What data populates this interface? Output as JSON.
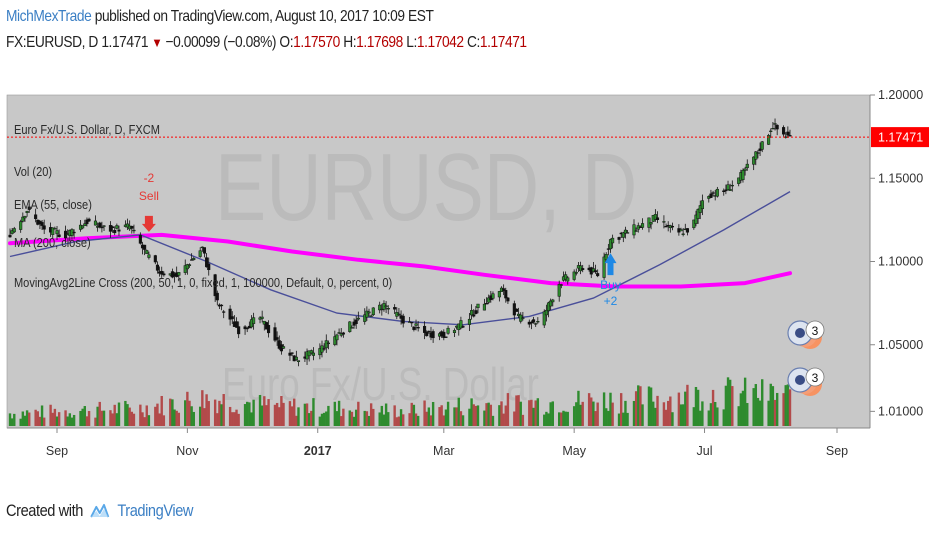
{
  "header": {
    "username": "MichMexTrade",
    "published_text": "published on TradingView.com, August 10, 2017 10:09 EST"
  },
  "quote": {
    "symbol": "FX:EURUSD, D",
    "last": "1.17471",
    "change_arrow": "▼",
    "change": "−0.00099 (−0.08%)",
    "open_label": "O:",
    "open": "1.17570",
    "high_label": "H:",
    "high": "1.17698",
    "low_label": "L:",
    "low": "1.17042",
    "close_label": "C:",
    "close": "1.17471"
  },
  "footer": {
    "created_with": "Created with",
    "brand": "TradingView",
    "brand_icon": "tradingview-logo-icon"
  },
  "colors": {
    "pane_bg": "#c8c8c8",
    "sma_line": "#ff00ff",
    "ema_line": "#4a4f9a",
    "price_line": "#ff0000",
    "up_volume": "#2e8b2e",
    "down_volume": "#b24a4a",
    "buy_signal": "#1e88e5",
    "sell_signal": "#e53935"
  },
  "chart_data": {
    "type": "candlestick",
    "watermark": "EURUSD, D",
    "watermark_sub": "Euro Fx/U.S. Dollar",
    "legend": [
      "Euro Fx/U.S. Dollar, D, FXCM",
      "Vol (20)",
      "EMA (55, close)",
      "MA (200, close)",
      "MovingAvg2Line Cross (200, 50, 1, 0, fixed, 1, 100000, Default, 0, percent, 0)"
    ],
    "x_tick_labels": [
      "Sep",
      "Nov",
      "2017",
      "Mar",
      "May",
      "Jul",
      "Sep"
    ],
    "y_tick_labels": [
      "1.20000",
      "1.15000",
      "1.10000",
      "1.05000",
      "1.01000"
    ],
    "ylim": [
      1.0,
      1.2
    ],
    "last_price_label": "1.17471",
    "price_path": [
      {
        "x": "2016-08-10",
        "y": 1.117
      },
      {
        "x": "2016-08-18",
        "y": 1.131
      },
      {
        "x": "2016-08-26",
        "y": 1.119
      },
      {
        "x": "2016-09-05",
        "y": 1.116
      },
      {
        "x": "2016-09-15",
        "y": 1.124
      },
      {
        "x": "2016-09-25",
        "y": 1.119
      },
      {
        "x": "2016-10-05",
        "y": 1.121
      },
      {
        "x": "2016-10-12",
        "y": 1.106
      },
      {
        "x": "2016-10-19",
        "y": 1.094
      },
      {
        "x": "2016-10-27",
        "y": 1.091
      },
      {
        "x": "2016-11-08",
        "y": 1.108
      },
      {
        "x": "2016-11-15",
        "y": 1.075
      },
      {
        "x": "2016-11-25",
        "y": 1.059
      },
      {
        "x": "2016-12-05",
        "y": 1.066
      },
      {
        "x": "2016-12-15",
        "y": 1.048
      },
      {
        "x": "2016-12-22",
        "y": 1.041
      },
      {
        "x": "2017-01-01",
        "y": 1.046
      },
      {
        "x": "2017-01-10",
        "y": 1.056
      },
      {
        "x": "2017-01-20",
        "y": 1.065
      },
      {
        "x": "2017-02-01",
        "y": 1.074
      },
      {
        "x": "2017-02-10",
        "y": 1.065
      },
      {
        "x": "2017-02-20",
        "y": 1.057
      },
      {
        "x": "2017-03-01",
        "y": 1.056
      },
      {
        "x": "2017-03-10",
        "y": 1.063
      },
      {
        "x": "2017-03-20",
        "y": 1.076
      },
      {
        "x": "2017-03-28",
        "y": 1.083
      },
      {
        "x": "2017-04-05",
        "y": 1.066
      },
      {
        "x": "2017-04-15",
        "y": 1.063
      },
      {
        "x": "2017-04-24",
        "y": 1.087
      },
      {
        "x": "2017-05-05",
        "y": 1.097
      },
      {
        "x": "2017-05-12",
        "y": 1.092
      },
      {
        "x": "2017-05-18",
        "y": 1.113
      },
      {
        "x": "2017-05-28",
        "y": 1.119
      },
      {
        "x": "2017-06-08",
        "y": 1.126
      },
      {
        "x": "2017-06-18",
        "y": 1.117
      },
      {
        "x": "2017-06-25",
        "y": 1.12
      },
      {
        "x": "2017-07-01",
        "y": 1.14
      },
      {
        "x": "2017-07-10",
        "y": 1.142
      },
      {
        "x": "2017-07-18",
        "y": 1.151
      },
      {
        "x": "2017-07-26",
        "y": 1.166
      },
      {
        "x": "2017-08-02",
        "y": 1.182
      },
      {
        "x": "2017-08-06",
        "y": 1.177
      },
      {
        "x": "2017-08-10",
        "y": 1.1747
      }
    ],
    "ema_55": [
      {
        "x": "2016-08-10",
        "y": 1.103
      },
      {
        "x": "2016-09-10",
        "y": 1.112
      },
      {
        "x": "2016-10-10",
        "y": 1.116
      },
      {
        "x": "2016-11-10",
        "y": 1.1
      },
      {
        "x": "2016-12-10",
        "y": 1.083
      },
      {
        "x": "2017-01-10",
        "y": 1.069
      },
      {
        "x": "2017-02-10",
        "y": 1.064
      },
      {
        "x": "2017-03-10",
        "y": 1.062
      },
      {
        "x": "2017-04-10",
        "y": 1.067
      },
      {
        "x": "2017-05-10",
        "y": 1.078
      },
      {
        "x": "2017-06-10",
        "y": 1.098
      },
      {
        "x": "2017-07-10",
        "y": 1.119
      },
      {
        "x": "2017-08-10",
        "y": 1.142
      }
    ],
    "sma_200": [
      {
        "x": "2016-08-10",
        "y": 1.111
      },
      {
        "x": "2016-09-15",
        "y": 1.114
      },
      {
        "x": "2016-10-20",
        "y": 1.116
      },
      {
        "x": "2016-11-20",
        "y": 1.112
      },
      {
        "x": "2016-12-20",
        "y": 1.106
      },
      {
        "x": "2017-01-20",
        "y": 1.101
      },
      {
        "x": "2017-02-20",
        "y": 1.097
      },
      {
        "x": "2017-03-20",
        "y": 1.092
      },
      {
        "x": "2017-04-20",
        "y": 1.087
      },
      {
        "x": "2017-05-20",
        "y": 1.085
      },
      {
        "x": "2017-06-20",
        "y": 1.085
      },
      {
        "x": "2017-07-20",
        "y": 1.087
      },
      {
        "x": "2017-08-10",
        "y": 1.093
      }
    ],
    "signals": [
      {
        "type": "sell",
        "date": "2016-10-14",
        "price": 1.119,
        "label_top": "-2",
        "label_bottom": "Sell"
      },
      {
        "type": "buy",
        "date": "2017-05-18",
        "price": 1.105,
        "label_top": "Buy",
        "label_bottom": "+2"
      }
    ],
    "volume_profile": [
      {
        "x": "2016-08-10",
        "v": 0.25
      },
      {
        "x": "2016-10-10",
        "v": 0.35
      },
      {
        "x": "2016-11-10",
        "v": 0.55
      },
      {
        "x": "2016-12-10",
        "v": 0.4
      },
      {
        "x": "2017-01-10",
        "v": 0.35
      },
      {
        "x": "2017-02-10",
        "v": 0.3
      },
      {
        "x": "2017-03-10",
        "v": 0.4
      },
      {
        "x": "2017-04-10",
        "v": 0.45
      },
      {
        "x": "2017-05-10",
        "v": 0.5
      },
      {
        "x": "2017-06-10",
        "v": 0.55
      },
      {
        "x": "2017-07-10",
        "v": 0.65
      },
      {
        "x": "2017-08-10",
        "v": 0.6
      }
    ],
    "event_badges": [
      {
        "icon": "event-flag-icon",
        "count": "3"
      },
      {
        "icon": "us-flag-icon",
        "count": "3"
      }
    ]
  }
}
